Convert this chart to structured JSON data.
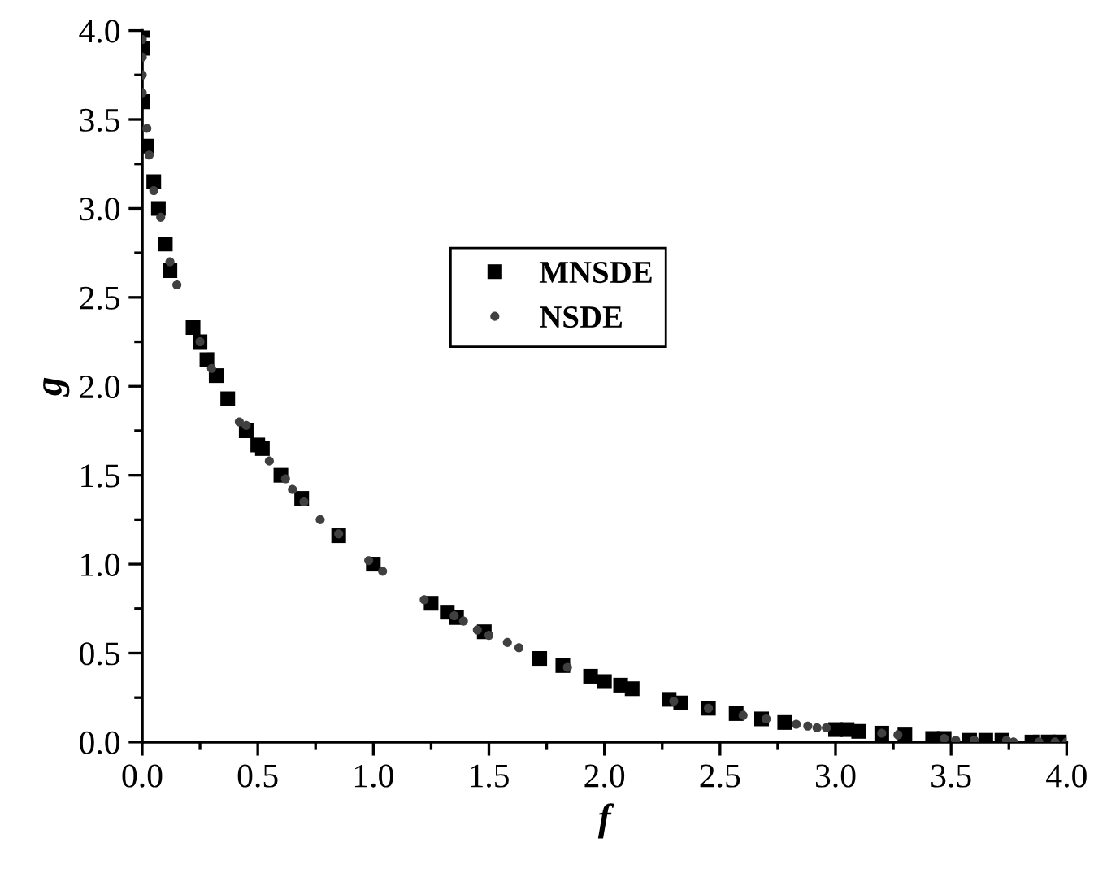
{
  "chart_data": {
    "type": "scatter",
    "xlabel": "f",
    "ylabel": "g",
    "xlim": [
      0,
      4
    ],
    "ylim": [
      0,
      4
    ],
    "xticks": [
      {
        "value": 0,
        "label": "0.0"
      },
      0.5,
      {
        "value": 1,
        "label": "1.0"
      },
      1.5,
      {
        "value": 2,
        "label": "2.0"
      },
      2.5,
      {
        "value": 3,
        "label": "3.0"
      },
      3.5,
      {
        "value": 4,
        "label": "4.0"
      }
    ],
    "yticks": [
      {
        "value": 0,
        "label": "0.0"
      },
      0.5,
      {
        "value": 1,
        "label": "1.0"
      },
      1.5,
      {
        "value": 2,
        "label": "2.0"
      },
      2.5,
      {
        "value": 3,
        "label": "3.0"
      },
      3.5,
      {
        "value": 4,
        "label": "4.0"
      }
    ],
    "grid": false,
    "legend": "center",
    "series": [
      {
        "name": "MNSDE",
        "color": "#000000",
        "marker": "square",
        "x": [
          0.0,
          0.0,
          0.0,
          0.02,
          0.05,
          0.07,
          0.1,
          0.12,
          0.22,
          0.25,
          0.28,
          0.32,
          0.37,
          0.45,
          0.5,
          0.52,
          0.6,
          0.69,
          0.85,
          1.0,
          1.25,
          1.32,
          1.36,
          1.48,
          1.72,
          1.82,
          1.94,
          2.0,
          2.07,
          2.12,
          2.28,
          2.33,
          2.45,
          2.57,
          2.68,
          2.78,
          3.0,
          3.05,
          3.1,
          3.2,
          3.3,
          3.42,
          3.47,
          3.58,
          3.65,
          3.72,
          3.85,
          3.92,
          3.97
        ],
        "values": [
          4.0,
          3.9,
          3.6,
          3.35,
          3.15,
          3.0,
          2.8,
          2.65,
          2.33,
          2.25,
          2.15,
          2.06,
          1.93,
          1.75,
          1.67,
          1.65,
          1.5,
          1.37,
          1.16,
          1.0,
          0.78,
          0.73,
          0.7,
          0.62,
          0.47,
          0.43,
          0.37,
          0.34,
          0.32,
          0.3,
          0.24,
          0.22,
          0.19,
          0.16,
          0.13,
          0.11,
          0.07,
          0.07,
          0.06,
          0.05,
          0.04,
          0.02,
          0.02,
          0.01,
          0.01,
          0.01,
          0.0,
          0.0,
          0.0
        ]
      },
      {
        "name": "NSDE",
        "color": "#404040",
        "marker": "circle",
        "x": [
          0.0,
          0.0,
          0.0,
          0.0,
          0.02,
          0.03,
          0.05,
          0.08,
          0.12,
          0.15,
          0.25,
          0.3,
          0.42,
          0.45,
          0.55,
          0.62,
          0.65,
          0.7,
          0.77,
          0.85,
          0.98,
          1.04,
          1.22,
          1.35,
          1.39,
          1.45,
          1.5,
          1.58,
          1.63,
          1.84,
          2.3,
          2.45,
          2.6,
          2.7,
          2.83,
          2.88,
          2.92,
          2.96,
          3.2,
          3.27,
          3.47,
          3.52,
          3.6,
          3.74,
          3.77,
          3.88,
          3.95,
          4.0
        ],
        "values": [
          3.95,
          3.85,
          3.75,
          3.65,
          3.45,
          3.3,
          3.1,
          2.95,
          2.7,
          2.57,
          2.25,
          2.1,
          1.8,
          1.78,
          1.58,
          1.48,
          1.42,
          1.35,
          1.25,
          1.17,
          1.02,
          0.96,
          0.8,
          0.71,
          0.68,
          0.63,
          0.6,
          0.56,
          0.53,
          0.42,
          0.23,
          0.19,
          0.15,
          0.13,
          0.1,
          0.09,
          0.08,
          0.08,
          0.05,
          0.04,
          0.02,
          0.01,
          0.01,
          0.01,
          0.0,
          0.0,
          0.0,
          0.0
        ]
      }
    ]
  }
}
